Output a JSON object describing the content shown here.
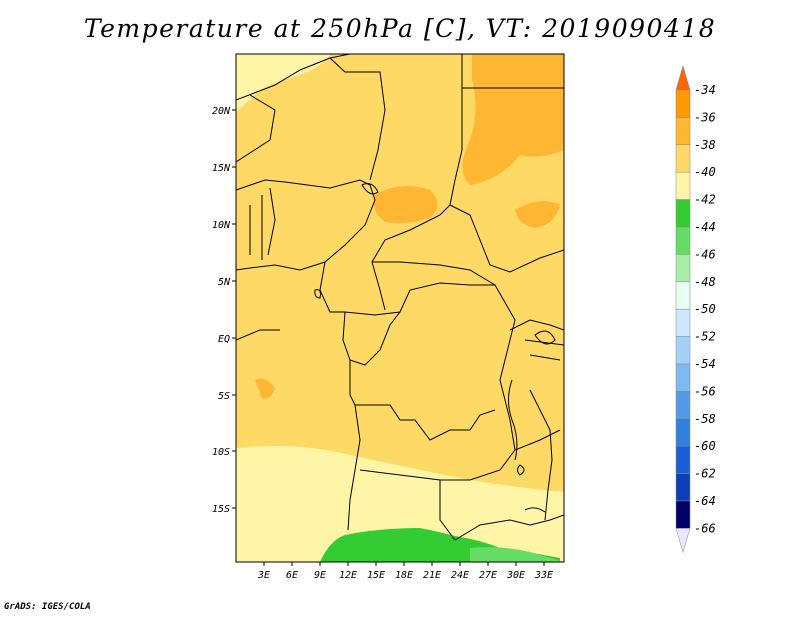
{
  "title": "Temperature at 250hPa [C], VT: 2019090418",
  "footer": "GrADS: IGES/COLA",
  "map": {
    "lat_labels": [
      "20N",
      "15N",
      "10N",
      "5N",
      "EQ",
      "5S",
      "10S",
      "15S"
    ],
    "lon_labels": [
      "3E",
      "6E",
      "9E",
      "12E",
      "15E",
      "18E",
      "21E",
      "24E",
      "27E",
      "30E",
      "33E"
    ]
  },
  "colorbar": {
    "levels": [
      "-34",
      "-36",
      "-38",
      "-40",
      "-42",
      "-44",
      "-46",
      "-48",
      "-50",
      "-52",
      "-54",
      "-56",
      "-58",
      "-60",
      "-62",
      "-64",
      "-66"
    ],
    "colors": [
      "#ff6600",
      "#ff9900",
      "#ffb733",
      "#ffd966",
      "#fff5a6",
      "#33cc33",
      "#66dd66",
      "#a6eea6",
      "#e6fff0",
      "#cce6ff",
      "#a6d0f5",
      "#80b8f0",
      "#5599e8",
      "#337fe0",
      "#1a5ed6",
      "#0d3fb8",
      "#000066"
    ]
  }
}
